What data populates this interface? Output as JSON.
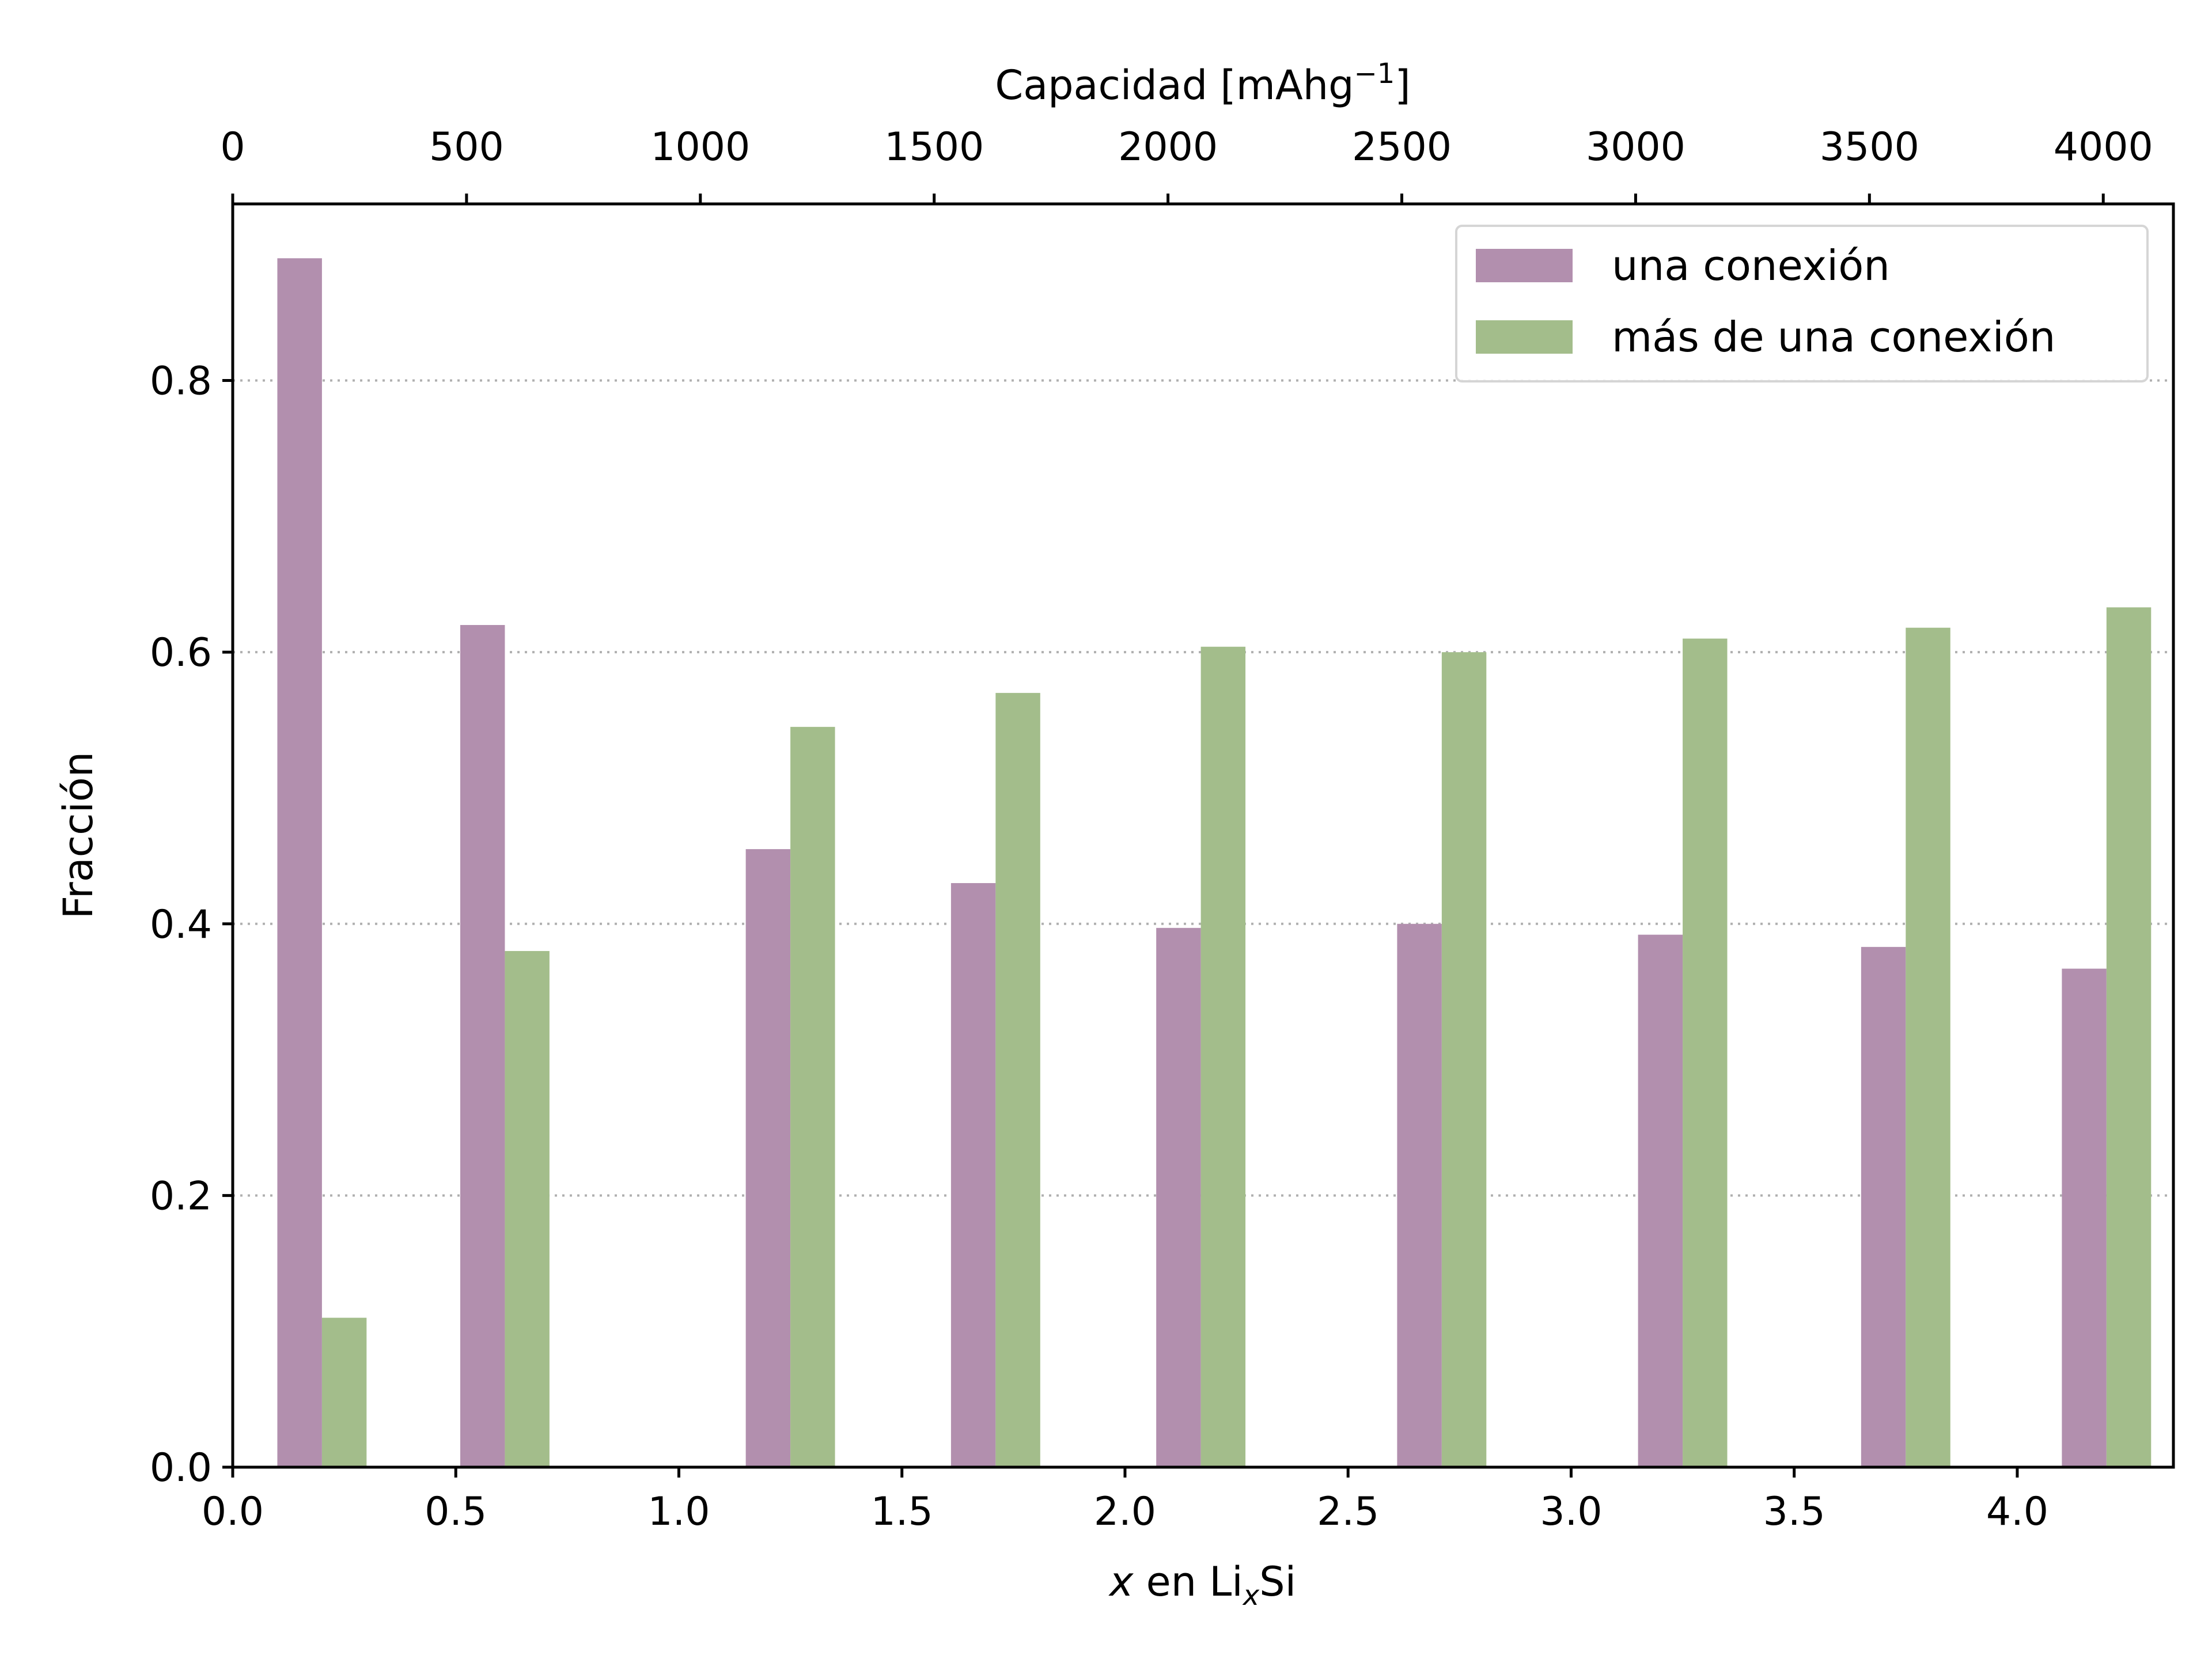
{
  "chart_data": {
    "type": "bar",
    "xlabel": {
      "prefix": "x",
      "middle": " en Li",
      "subscript": "x",
      "suffix": "Si"
    },
    "ylabel": "Fracción",
    "x2label": {
      "text": "Capacidad [mAhg",
      "superscript": "−1",
      "suffix": "]"
    },
    "xlim": [
      0.0,
      4.35
    ],
    "ylim": [
      0.0,
      0.93
    ],
    "x2lim": [
      0,
      4150
    ],
    "xticks": [
      "0.0",
      "0.5",
      "1.0",
      "1.5",
      "2.0",
      "2.5",
      "3.0",
      "3.5",
      "4.0"
    ],
    "yticks": [
      "0.0",
      "0.2",
      "0.4",
      "0.6",
      "0.8"
    ],
    "x2ticks": [
      "0",
      "500",
      "1000",
      "1500",
      "2000",
      "2500",
      "3000",
      "3500",
      "4000"
    ],
    "grid": "horizontal dotted",
    "legend_position": "top-right",
    "bar_width": 0.1,
    "x": [
      0.2,
      0.61,
      1.25,
      1.71,
      2.17,
      2.71,
      3.25,
      3.75,
      4.2
    ],
    "series": [
      {
        "name": "una conexión",
        "color": "#b28fae",
        "values": [
          0.89,
          0.62,
          0.455,
          0.43,
          0.397,
          0.4,
          0.392,
          0.383,
          0.367
        ]
      },
      {
        "name": "más de una conexión",
        "color": "#a3bd8b",
        "values": [
          0.11,
          0.38,
          0.545,
          0.57,
          0.604,
          0.6,
          0.61,
          0.618,
          0.633
        ]
      }
    ]
  }
}
